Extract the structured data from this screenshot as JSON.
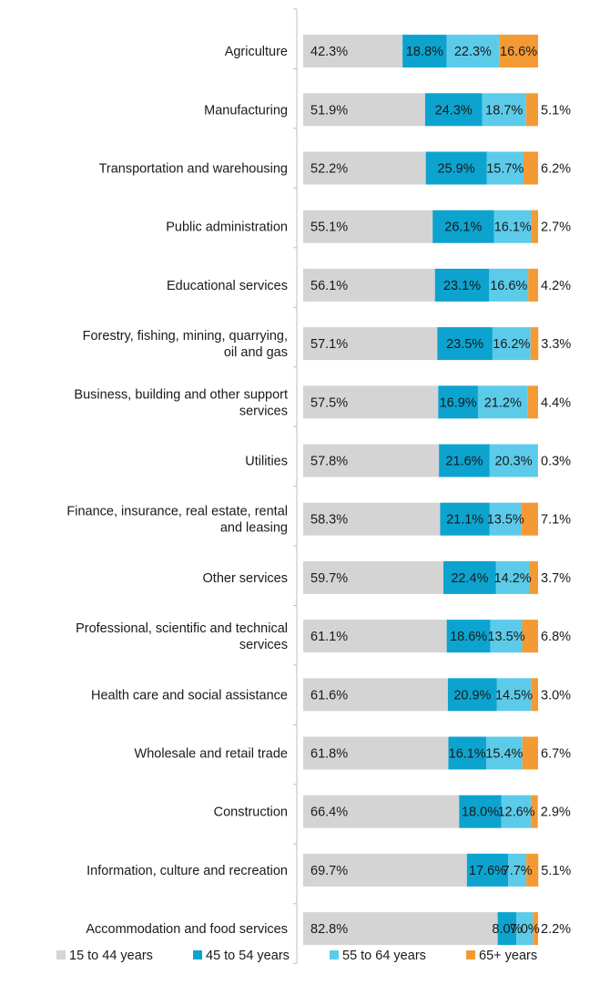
{
  "chart_data": {
    "type": "bar",
    "orientation": "horizontal",
    "stacked": true,
    "categories": [
      "Agriculture",
      "Manufacturing",
      "Transportation and warehousing",
      "Public administration",
      "Educational services",
      "Forestry, fishing, mining, quarrying, oil and gas",
      "Business, building and other support services",
      "Utilities",
      "Finance, insurance, real estate, rental and leasing",
      "Other services",
      "Professional, scientific and technical services",
      "Health care and social assistance",
      "Wholesale and retail trade",
      "Construction",
      "Information, culture and recreation",
      "Accommodation and food services"
    ],
    "series": [
      {
        "name": "15 to 44 years",
        "color": "#d4d4d4",
        "values": [
          42.3,
          51.9,
          52.2,
          55.1,
          56.1,
          57.1,
          57.5,
          57.8,
          58.3,
          59.7,
          61.1,
          61.6,
          61.8,
          66.4,
          69.7,
          82.8
        ]
      },
      {
        "name": "45 to 54 years",
        "color": "#0ca3cf",
        "values": [
          18.8,
          24.3,
          25.9,
          26.1,
          23.1,
          23.5,
          16.9,
          21.6,
          21.1,
          22.4,
          18.6,
          20.9,
          16.1,
          18.0,
          17.6,
          8.0
        ]
      },
      {
        "name": "55 to 64 years",
        "color": "#5ccbea",
        "values": [
          22.3,
          18.7,
          15.7,
          16.1,
          16.6,
          16.2,
          21.2,
          20.3,
          13.5,
          14.2,
          13.5,
          14.5,
          15.4,
          12.6,
          7.7,
          7.0
        ]
      },
      {
        "name": "65+ years",
        "color": "#f39a34",
        "values": [
          16.6,
          5.1,
          6.2,
          2.7,
          4.2,
          3.3,
          4.4,
          0.3,
          7.1,
          3.7,
          6.8,
          3.0,
          6.7,
          2.9,
          5.1,
          2.2
        ]
      }
    ],
    "xlim": [
      0,
      100
    ],
    "grid": false,
    "legend_position": "bottom",
    "data_labels": [
      [
        "42.3%",
        "18.8%",
        "22.3%",
        "16.6%"
      ],
      [
        "51.9%",
        "24.3%",
        "18.7%",
        "5.1%"
      ],
      [
        "52.2%",
        "25.9%",
        "15.7%",
        "6.2%"
      ],
      [
        "55.1%",
        "26.1%",
        "16.1%",
        "2.7%"
      ],
      [
        "56.1%",
        "23.1%",
        "16.6%",
        "4.2%"
      ],
      [
        "57.1%",
        "23.5%",
        "16.2%",
        "3.3%"
      ],
      [
        "57.5%",
        "16.9%",
        "21.2%",
        "4.4%"
      ],
      [
        "57.8%",
        "21.6%",
        "20.3%",
        "0.3%"
      ],
      [
        "58.3%",
        "21.1%",
        "13.5%",
        "7.1%"
      ],
      [
        "59.7%",
        "22.4%",
        "14.2%",
        "3.7%"
      ],
      [
        "61.1%",
        "18.6%",
        "13.5%",
        "6.8%"
      ],
      [
        "61.6%",
        "20.9%",
        "14.5%",
        "3.0%"
      ],
      [
        "61.8%",
        "16.1%",
        "15.4%",
        "6.7%"
      ],
      [
        "66.4%",
        "18.0%",
        "12.6%",
        "2.9%"
      ],
      [
        "69.7%",
        "17.6%",
        "7.7%",
        "5.1%"
      ],
      [
        "82.8%",
        "8.0%",
        "7.0%",
        "2.2%"
      ]
    ]
  }
}
